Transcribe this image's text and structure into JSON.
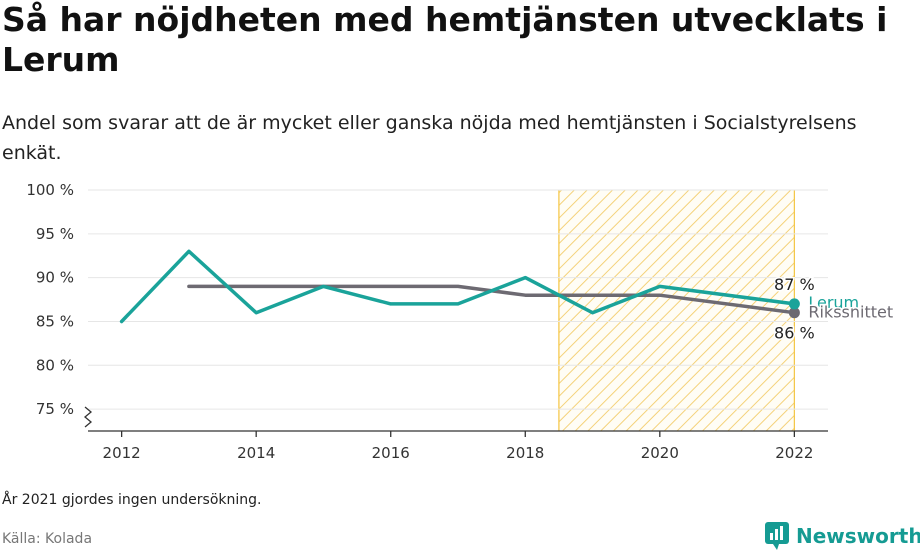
{
  "header": {
    "title": "Så har nöjdheten med hemtjänsten utvecklats i Lerum",
    "subtitle": "Andel som svarar att de är mycket eller ganska nöjda med hemtjänsten i Socialstyrelsens enkät."
  },
  "footer": {
    "note": "År 2021 gjordes ingen undersökning.",
    "source": "Källa: Kolada",
    "brand": "Newsworthy"
  },
  "colors": {
    "lerum": "#1aa39a",
    "riket": "#6d6a72",
    "highlight": "#f4c542",
    "grid": "#e6e6e6",
    "axis": "#333333"
  },
  "chart_data": {
    "type": "line",
    "x_ticks": [
      2012,
      2014,
      2016,
      2018,
      2020,
      2022
    ],
    "y_ticks": [
      "75 %",
      "80 %",
      "85 %",
      "90 %",
      "95 %",
      "100 %"
    ],
    "y_tick_values": [
      75,
      80,
      85,
      90,
      95,
      100
    ],
    "xlim": [
      2011.5,
      2022.5
    ],
    "ylim": [
      72.5,
      100
    ],
    "highlight_range": [
      2018.5,
      2022
    ],
    "series": [
      {
        "name": "Lerum",
        "key": "lerum",
        "x": [
          2012,
          2013,
          2014,
          2015,
          2016,
          2017,
          2018,
          2019,
          2020,
          2022
        ],
        "y": [
          85,
          93,
          86,
          89,
          87,
          87,
          90,
          86,
          89,
          87
        ]
      },
      {
        "name": "Rikssnittet",
        "key": "riket",
        "x": [
          2013,
          2014,
          2015,
          2016,
          2017,
          2018,
          2019,
          2020,
          2022
        ],
        "y": [
          89,
          89,
          89,
          89,
          89,
          88,
          88,
          88,
          86
        ]
      }
    ],
    "end_labels": [
      {
        "series": "Lerum",
        "value_label": "87 %"
      },
      {
        "series": "Rikssnittet",
        "value_label": "86 %"
      }
    ],
    "legend": "inline at line ends"
  }
}
